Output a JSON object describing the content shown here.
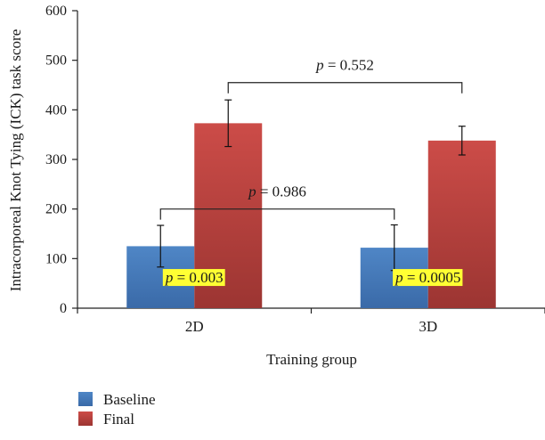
{
  "chart_data": {
    "type": "bar",
    "title": "",
    "xlabel": "Training group",
    "ylabel": "Intracorporeal Knot Tying (ICK) task score",
    "categories": [
      "2D",
      "3D"
    ],
    "ylim": [
      0,
      600
    ],
    "yticks": [
      0,
      100,
      200,
      300,
      400,
      500,
      600
    ],
    "grid": false,
    "legend_position": "bottom-left",
    "series": [
      {
        "name": "Baseline",
        "color": "#4a7ebb",
        "values": [
          125,
          122
        ],
        "error": [
          42,
          46
        ]
      },
      {
        "name": "Final",
        "color": "#c0504d",
        "values": [
          373,
          338
        ],
        "error": [
          47,
          29
        ]
      }
    ],
    "annotations": {
      "between_groups": [
        {
          "series": "Baseline",
          "p_symbol": "p",
          "p_text": " = 0.986"
        },
        {
          "series": "Final",
          "p_symbol": "p",
          "p_text": " = 0.552"
        }
      ],
      "within_group": [
        {
          "category": "2D",
          "p_symbol": "p",
          "p_text": " = 0.003",
          "highlight": "#ffff33"
        },
        {
          "category": "3D",
          "p_symbol": "p",
          "p_text": " = 0.0005",
          "highlight": "#ffff33"
        }
      ]
    }
  }
}
